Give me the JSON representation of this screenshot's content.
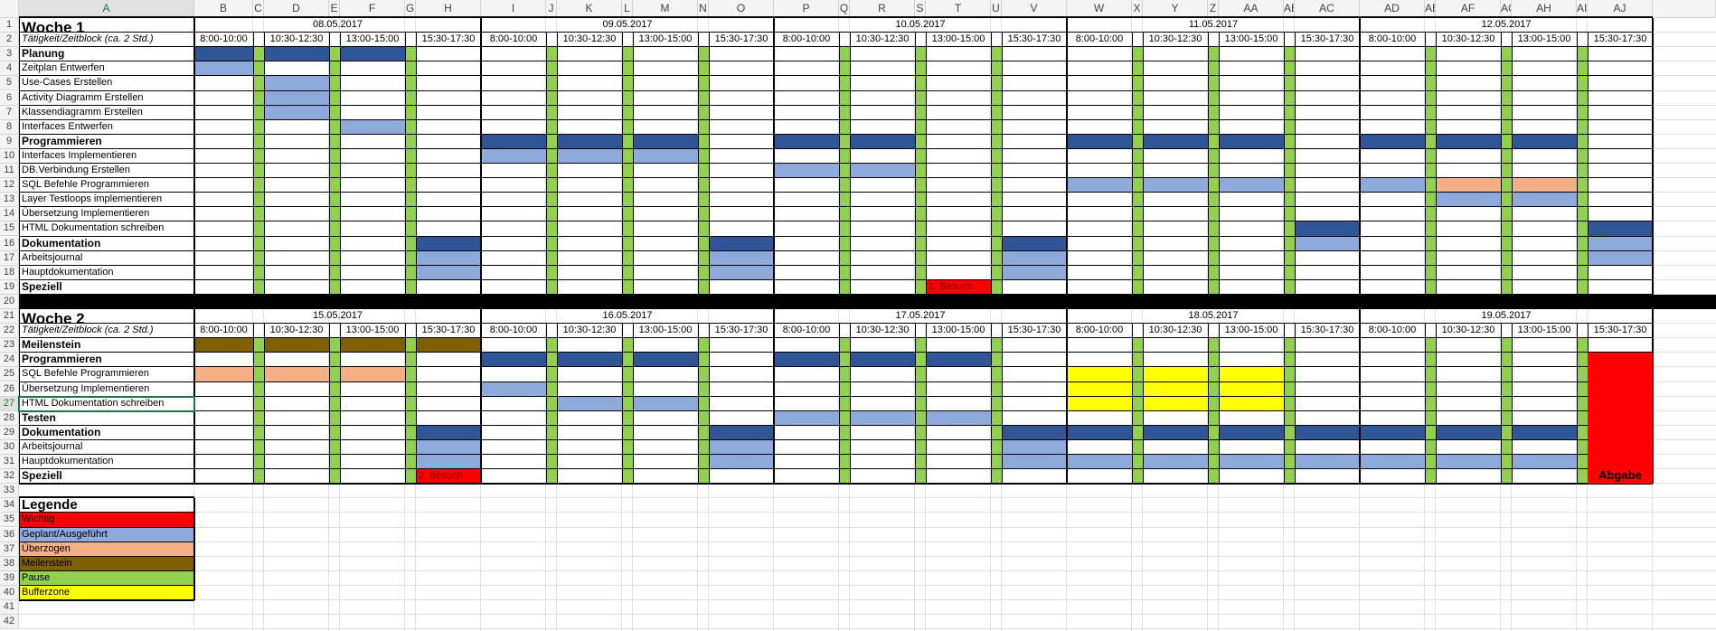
{
  "columns": [
    "A",
    "B",
    "C",
    "D",
    "E",
    "F",
    "G",
    "H",
    "I",
    "J",
    "K",
    "L",
    "M",
    "N",
    "O",
    "P",
    "Q",
    "R",
    "S",
    "T",
    "U",
    "V",
    "W",
    "X",
    "Y",
    "Z",
    "AA",
    "AB",
    "AC",
    "AD",
    "AE",
    "AF",
    "AG",
    "AH",
    "AI",
    "AJ"
  ],
  "slots": [
    "8:00-10:00",
    "10:30-12:30",
    "13:00-15:00",
    "15:30-17:30"
  ],
  "week1": {
    "title": "Woche 1",
    "row_header": "Tätigkeit/Zeitblock (ca. 2 Std.)",
    "dates": [
      "08.05.2017",
      "09.05.2017",
      "10.05.2017",
      "11.05.2017",
      "12.05.2017"
    ],
    "tasks": [
      [
        "Planung",
        1,
        [
          [
            "0.0",
            "b"
          ],
          [
            "0.1",
            "b"
          ],
          [
            "0.2",
            "b"
          ]
        ]
      ],
      [
        "Zeitplan Entwerfen",
        0,
        [
          [
            "0.0",
            "l"
          ]
        ]
      ],
      [
        "Use-Cases Erstellen",
        0,
        [
          [
            "0.1",
            "l"
          ]
        ]
      ],
      [
        "Activity Diagramm Erstellen",
        0,
        [
          [
            "0.1",
            "l"
          ]
        ]
      ],
      [
        "Klassendiagramm Erstellen",
        0,
        [
          [
            "0.1",
            "l"
          ]
        ]
      ],
      [
        "Interfaces Entwerfen",
        0,
        [
          [
            "0.2",
            "l"
          ]
        ]
      ],
      [
        "Programmieren",
        1,
        [
          [
            "1.0",
            "b"
          ],
          [
            "1.1",
            "b"
          ],
          [
            "1.2",
            "b"
          ],
          [
            "2.0",
            "b"
          ],
          [
            "2.1",
            "b"
          ],
          [
            "3.0",
            "b"
          ],
          [
            "3.1",
            "b"
          ],
          [
            "3.2",
            "b"
          ],
          [
            "4.0",
            "b"
          ],
          [
            "4.1",
            "b"
          ],
          [
            "4.2",
            "b"
          ]
        ]
      ],
      [
        "Interfaces Implementieren",
        0,
        [
          [
            "1.0",
            "l"
          ],
          [
            "1.1",
            "l"
          ],
          [
            "1.2",
            "l"
          ]
        ]
      ],
      [
        "DB.Verbindung Erstellen",
        0,
        [
          [
            "2.0",
            "l"
          ],
          [
            "2.1",
            "l"
          ]
        ]
      ],
      [
        "SQL Befehle Programmieren",
        0,
        [
          [
            "3.0",
            "l"
          ],
          [
            "3.1",
            "l"
          ],
          [
            "3.2",
            "l"
          ],
          [
            "4.0",
            "l"
          ],
          [
            "4.1",
            "o"
          ],
          [
            "4.2",
            "o"
          ]
        ]
      ],
      [
        "Layer Testloops implementieren",
        0,
        [
          [
            "4.1",
            "l"
          ],
          [
            "4.2",
            "l"
          ]
        ]
      ],
      [
        "Übersetzung Implementieren",
        0,
        []
      ],
      [
        "HTML Dokumentation schreiben",
        0,
        [
          [
            "3.3",
            "b"
          ],
          [
            "4.3",
            "b"
          ]
        ]
      ],
      [
        "Dokumentation",
        1,
        [
          [
            "0.3",
            "b"
          ],
          [
            "1.3",
            "b"
          ],
          [
            "2.3",
            "b"
          ],
          [
            "3.3",
            "l"
          ],
          [
            "4.3",
            "l"
          ]
        ]
      ],
      [
        "Arbeitsjournal",
        0,
        [
          [
            "0.3",
            "l"
          ],
          [
            "1.3",
            "l"
          ],
          [
            "2.3",
            "l"
          ],
          [
            "4.3",
            "l"
          ]
        ]
      ],
      [
        "Hauptdokumentation",
        0,
        [
          [
            "0.3",
            "l"
          ],
          [
            "1.3",
            "l"
          ],
          [
            "2.3",
            "l"
          ]
        ]
      ],
      [
        "Speziell",
        1,
        [
          [
            "2.2",
            "r"
          ]
        ]
      ]
    ],
    "special_label": "1. Besuch"
  },
  "week2": {
    "title": "Woche 2",
    "row_header": "Tätigkeit/Zeitblock (ca. 2 Std.)",
    "dates": [
      "15.05.2017",
      "16.05.2017",
      "17.05.2017",
      "18.05.2017",
      "19.05.2017"
    ],
    "tasks": [
      [
        "Meilenstein",
        1,
        [
          [
            "0.0",
            "m"
          ],
          [
            "0.1",
            "m"
          ],
          [
            "0.2",
            "m"
          ],
          [
            "0.3",
            "m"
          ]
        ]
      ],
      [
        "Programmieren",
        1,
        [
          [
            "1.0",
            "b"
          ],
          [
            "1.1",
            "b"
          ],
          [
            "1.2",
            "b"
          ],
          [
            "2.0",
            "b"
          ],
          [
            "2.1",
            "b"
          ],
          [
            "2.2",
            "b"
          ]
        ]
      ],
      [
        "SQL Befehle Programmieren",
        0,
        [
          [
            "0.0",
            "o"
          ],
          [
            "0.1",
            "o"
          ],
          [
            "0.2",
            "o"
          ],
          [
            "3.0",
            "y"
          ],
          [
            "3.1",
            "y"
          ],
          [
            "3.2",
            "y"
          ]
        ]
      ],
      [
        "Übersetzung Implementieren",
        0,
        [
          [
            "1.0",
            "l"
          ],
          [
            "3.0",
            "y"
          ],
          [
            "3.1",
            "y"
          ],
          [
            "3.2",
            "y"
          ]
        ]
      ],
      [
        "HTML Dokumentation schreiben",
        0,
        [
          [
            "1.1",
            "l"
          ],
          [
            "1.2",
            "l"
          ],
          [
            "3.0",
            "y"
          ],
          [
            "3.1",
            "y"
          ],
          [
            "3.2",
            "y"
          ]
        ]
      ],
      [
        "Testen",
        1,
        [
          [
            "2.0",
            "l"
          ],
          [
            "2.1",
            "l"
          ],
          [
            "2.2",
            "l"
          ]
        ]
      ],
      [
        "Dokumentation",
        1,
        [
          [
            "0.3",
            "b"
          ],
          [
            "1.3",
            "b"
          ],
          [
            "2.3",
            "b"
          ],
          [
            "3.0",
            "b"
          ],
          [
            "3.1",
            "b"
          ],
          [
            "3.2",
            "b"
          ],
          [
            "3.3",
            "b"
          ],
          [
            "4.0",
            "b"
          ],
          [
            "4.1",
            "b"
          ],
          [
            "4.2",
            "b"
          ]
        ]
      ],
      [
        "Arbeitsjournal",
        0,
        [
          [
            "0.3",
            "l"
          ],
          [
            "1.3",
            "l"
          ],
          [
            "2.3",
            "l"
          ]
        ]
      ],
      [
        "Hauptdokumentation",
        0,
        [
          [
            "0.3",
            "l"
          ],
          [
            "1.3",
            "l"
          ],
          [
            "2.3",
            "l"
          ],
          [
            "3.0",
            "l"
          ],
          [
            "3.1",
            "l"
          ],
          [
            "3.2",
            "l"
          ],
          [
            "3.3",
            "l"
          ],
          [
            "4.0",
            "l"
          ],
          [
            "4.1",
            "l"
          ],
          [
            "4.2",
            "l"
          ]
        ]
      ],
      [
        "Speziell",
        1,
        [
          [
            "0.3",
            "r"
          ]
        ]
      ]
    ],
    "special_label": "2. Besuch",
    "deadline": "Abgabe"
  },
  "legend": {
    "title": "Legende",
    "items": [
      [
        "Wichtig",
        "#ff0000"
      ],
      [
        "Geplant/Ausgeführt",
        "#8ea9db"
      ],
      [
        "Überzogen",
        "#f4b084"
      ],
      [
        "Meilenstein",
        "#7f6000"
      ],
      [
        "Pause",
        "#92d050"
      ],
      [
        "Bufferzone",
        "#ffff00"
      ]
    ]
  },
  "colors": {
    "b": "#2f5597",
    "l": "#8ea9db",
    "o": "#f4b084",
    "m": "#7f6000",
    "r": "#ff0000",
    "y": "#ffff00",
    "pause": "#92d050",
    "black": "#000000"
  }
}
